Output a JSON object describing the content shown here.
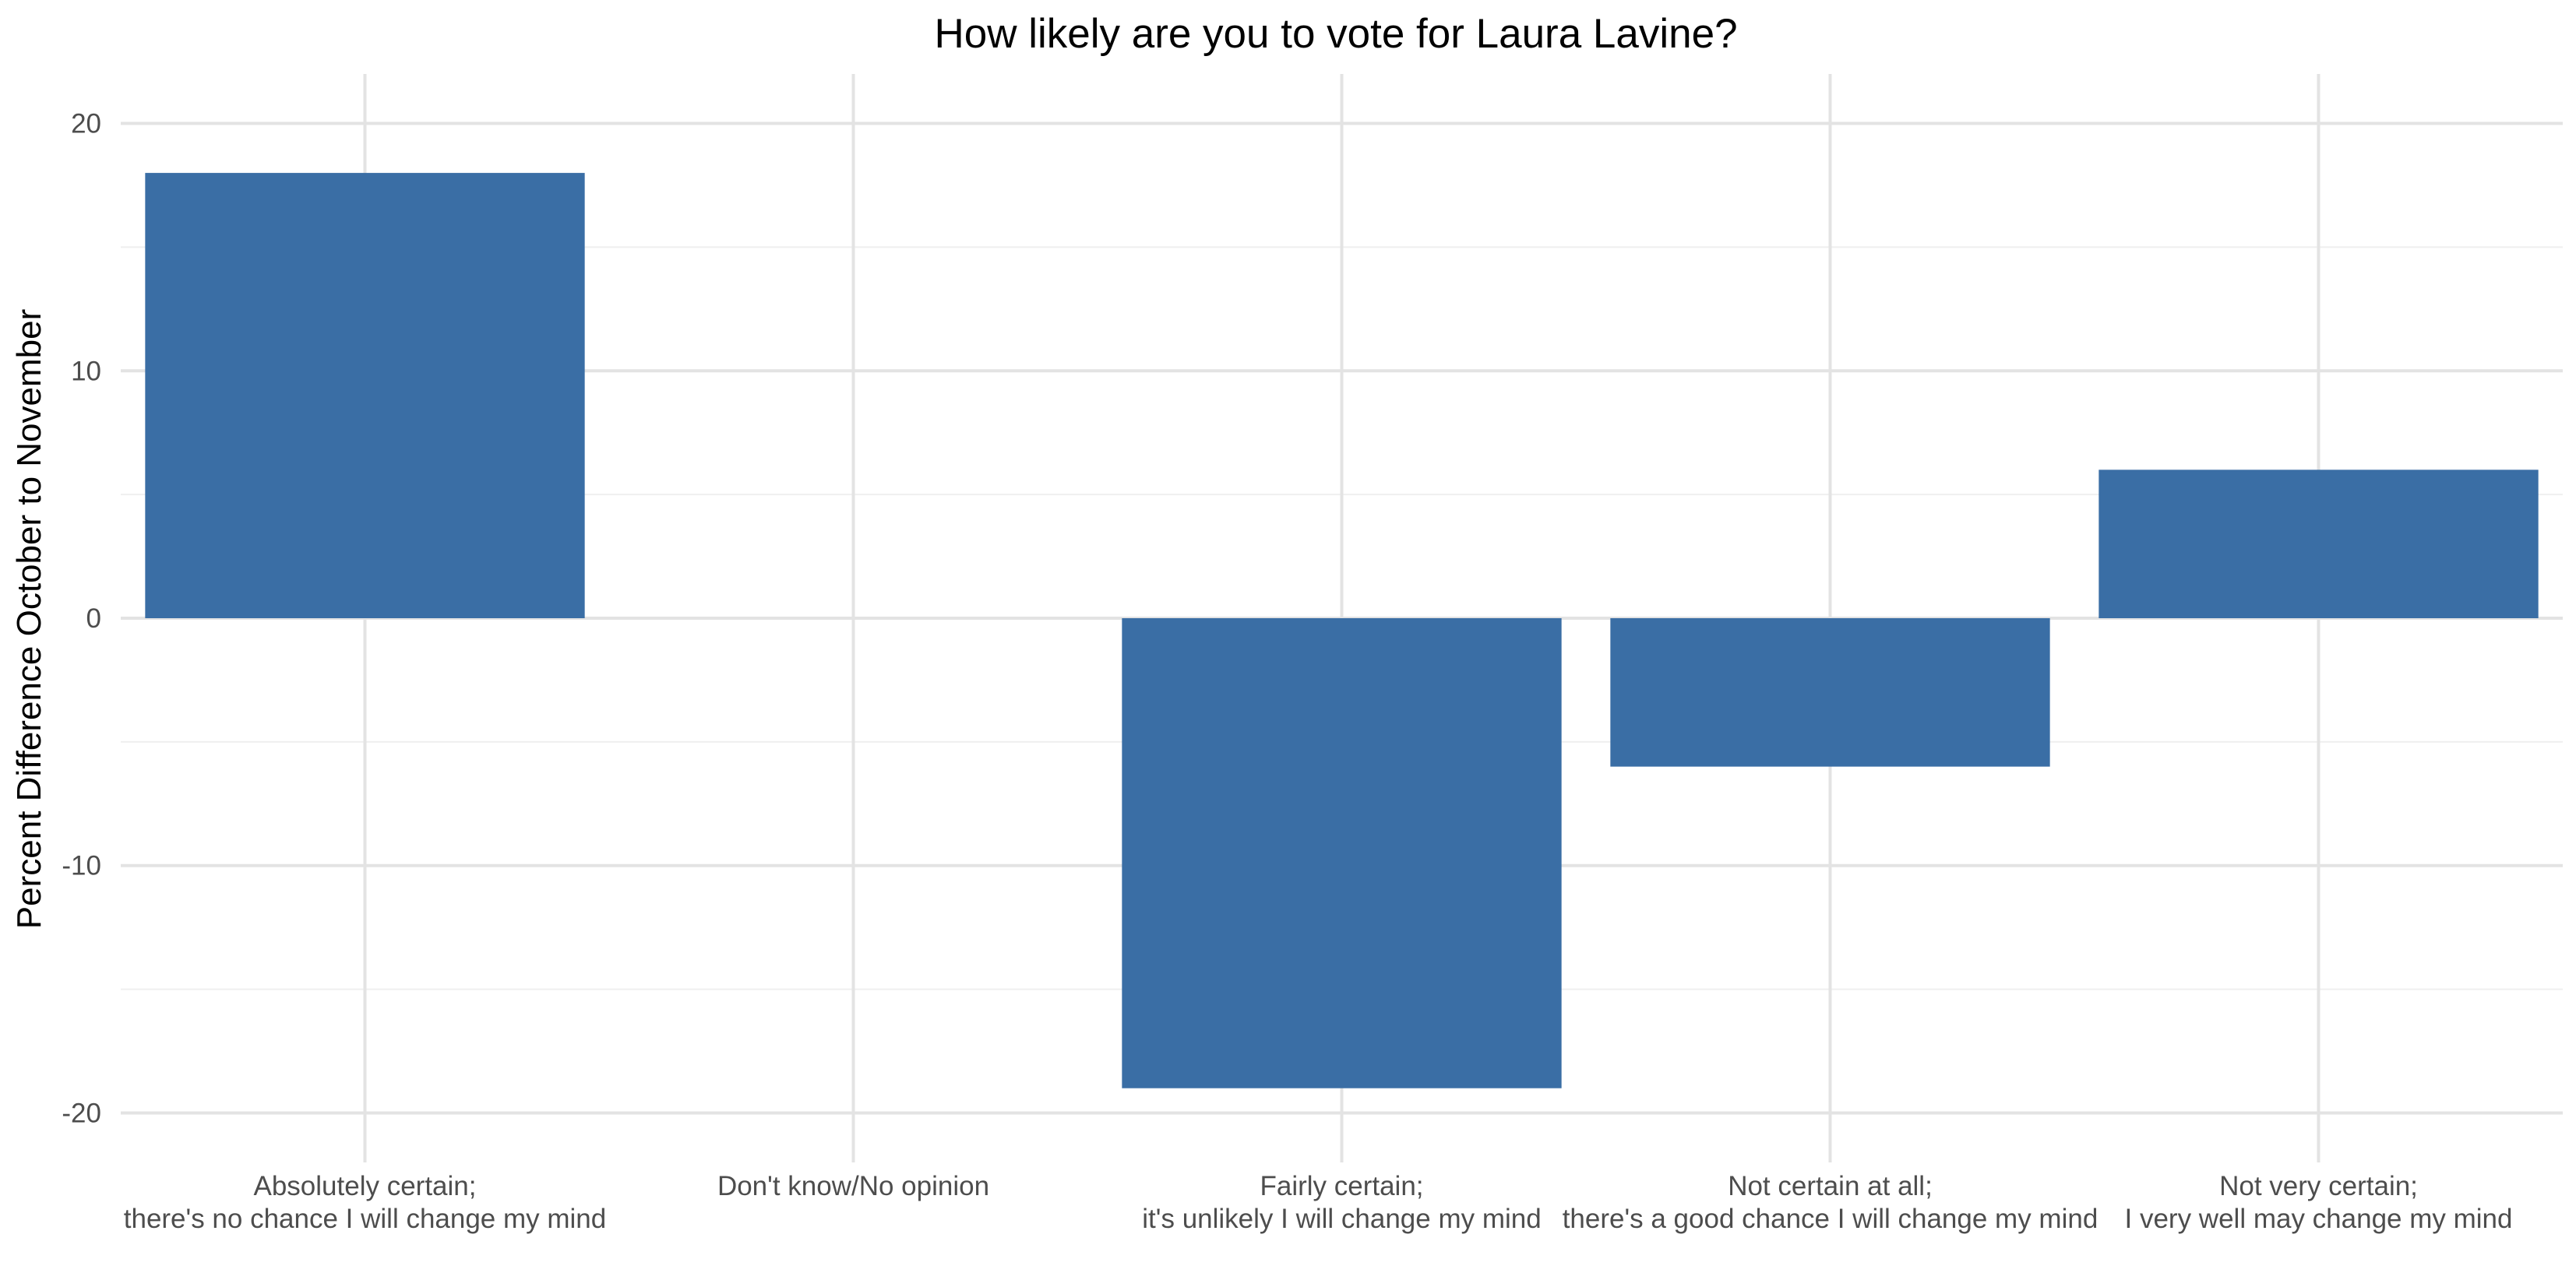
{
  "chart_data": {
    "type": "bar",
    "title": "How likely are you to vote for Laura Lavine?",
    "xlabel": "",
    "ylabel": "Percent Difference October to November",
    "categories": [
      [
        "Absolutely certain;",
        "there's no chance I will change my mind"
      ],
      [
        "Don't know/No opinion"
      ],
      [
        "Fairly certain;",
        "it's unlikely I will change my mind"
      ],
      [
        "Not certain at all;",
        "there's a good chance I will change my mind"
      ],
      [
        "Not very certain;",
        "I very well may change my mind"
      ]
    ],
    "values": [
      18,
      0,
      -19,
      -6,
      6
    ],
    "ylim": [
      -22,
      22
    ],
    "y_ticks": [
      -20,
      -10,
      0,
      10,
      20
    ],
    "y_tick_labels": [
      "-20",
      "-10",
      "0",
      "10",
      "20"
    ],
    "grid": true,
    "legend": "none",
    "colors": {
      "bar": "#3a6ea5",
      "grid_major": "#e3e3e3",
      "grid_minor": "#efefef",
      "background": "#ffffff"
    }
  }
}
